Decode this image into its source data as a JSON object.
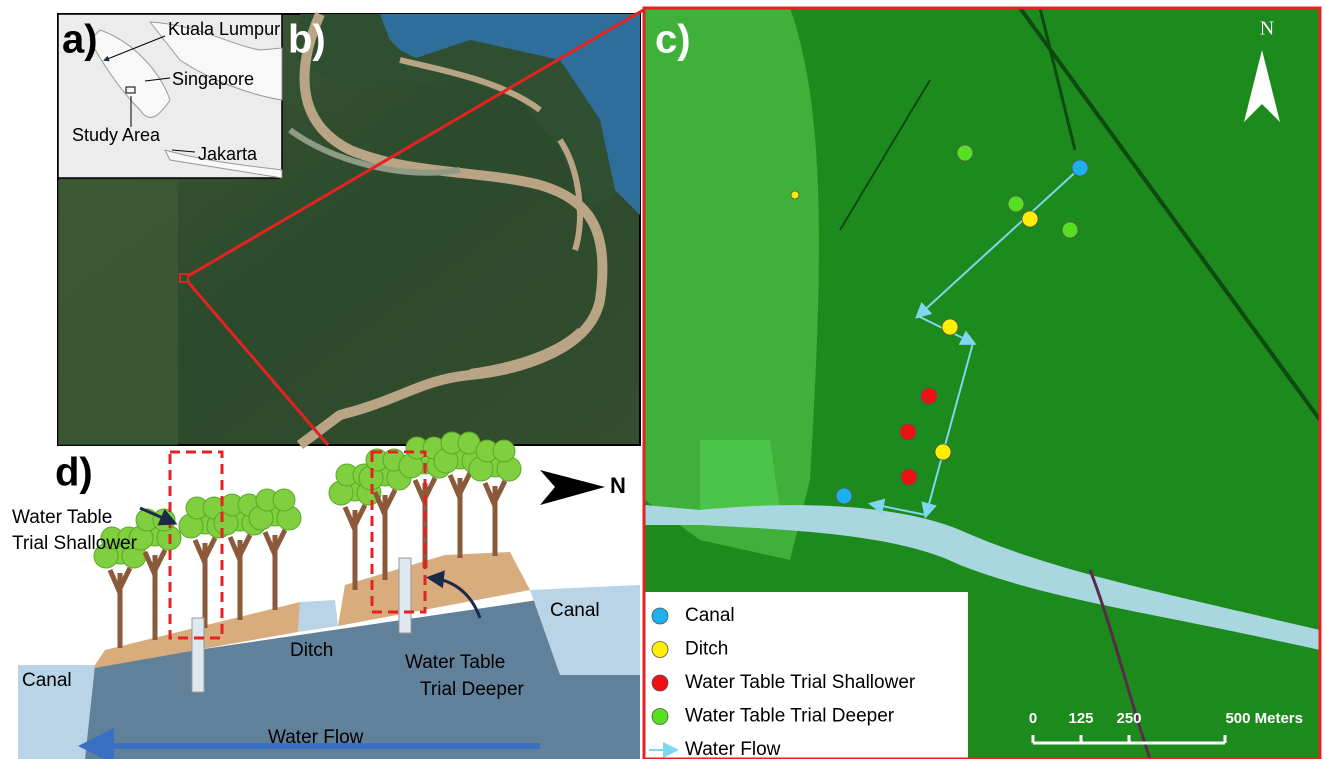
{
  "panels": {
    "a": "a)",
    "b": "b)",
    "c": "c)",
    "d": "d)"
  },
  "inset_labels": {
    "kuala_lumpur": "Kuala Lumpur",
    "singapore": "Singapore",
    "study_area": "Study Area",
    "jakarta": "Jakarta"
  },
  "map_north": "N",
  "diagram_north": "N",
  "legend": [
    {
      "label": "Canal",
      "color": "#1cb0ee",
      "marker": "circle"
    },
    {
      "label": "Ditch",
      "color": "#ffee00",
      "marker": "circle"
    },
    {
      "label": "Water Table Trial Shallower",
      "color": "#ee1111",
      "marker": "circle"
    },
    {
      "label": "Water Table Trial Deeper",
      "color": "#55e022",
      "marker": "circle"
    },
    {
      "label": "Water Flow",
      "color": "#7fd6ee",
      "marker": "arrow"
    }
  ],
  "scale_bar": [
    {
      "value": 0,
      "label": "0"
    },
    {
      "value": 125,
      "label": "125"
    },
    {
      "value": 250,
      "label": "250"
    },
    {
      "value": 500,
      "label": "500 Meters"
    }
  ],
  "diagram_labels": {
    "shallow": [
      "Water Table",
      "Trial Shallower"
    ],
    "deeper": [
      "Water Table",
      "Trial Deeper"
    ],
    "ditch": "Ditch",
    "canal_left": "Canal",
    "canal_right": "Canal",
    "water_flow": "Water Flow"
  }
}
